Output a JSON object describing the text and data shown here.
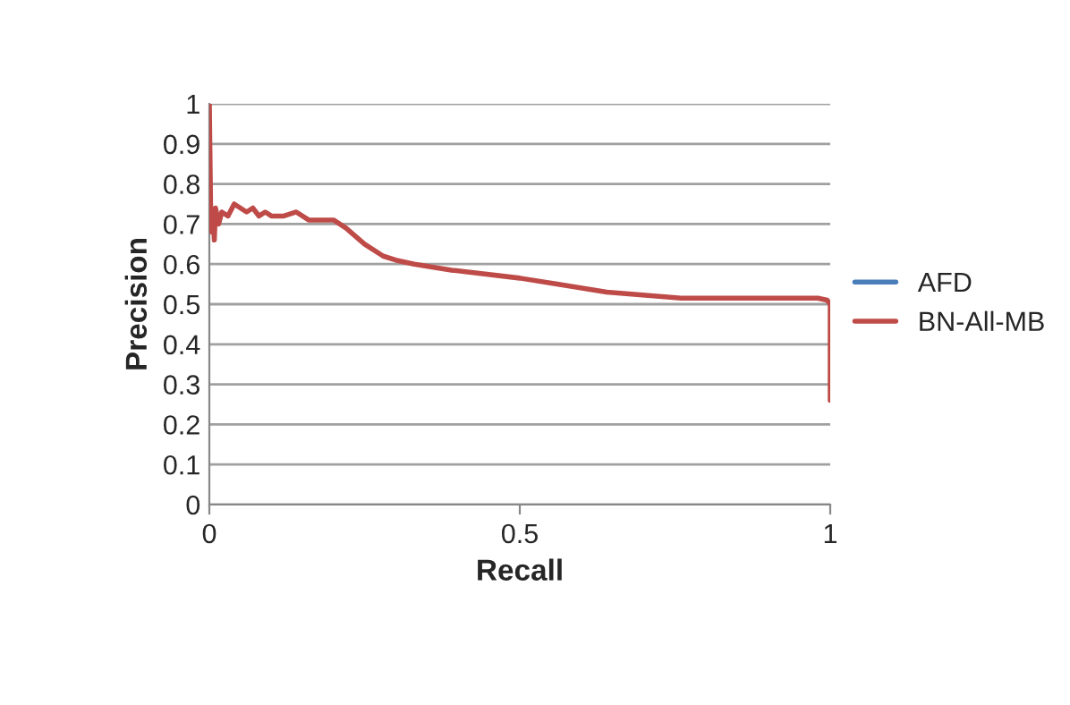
{
  "chart_data": {
    "type": "line",
    "xlabel": "Recall",
    "ylabel": "Precision",
    "xlim": [
      0,
      1
    ],
    "ylim": [
      0,
      1
    ],
    "xticks": [
      0,
      0.5,
      1
    ],
    "yticks": [
      0,
      0.1,
      0.2,
      0.3,
      0.4,
      0.5,
      0.6,
      0.7,
      0.8,
      0.9,
      1
    ],
    "grid": "y",
    "legend": "right",
    "marker": "none",
    "line_style": "solid",
    "series": [
      {
        "name": "AFD",
        "color": "#4a7ebb"
      },
      {
        "name": "BN-All-MB",
        "color": "#be4b48",
        "x": [
          0,
          0.002,
          0.004,
          0.006,
          0.008,
          0.01,
          0.015,
          0.02,
          0.03,
          0.04,
          0.05,
          0.06,
          0.07,
          0.08,
          0.09,
          0.1,
          0.12,
          0.14,
          0.16,
          0.18,
          0.2,
          0.22,
          0.25,
          0.28,
          0.3,
          0.33,
          0.39,
          0.5,
          0.56,
          0.64,
          0.76,
          0.98,
          0.995,
          1,
          1
        ],
        "values": [
          1,
          0.75,
          0.68,
          0.72,
          0.66,
          0.74,
          0.7,
          0.73,
          0.72,
          0.75,
          0.74,
          0.73,
          0.74,
          0.72,
          0.73,
          0.72,
          0.72,
          0.73,
          0.71,
          0.71,
          0.71,
          0.69,
          0.65,
          0.62,
          0.61,
          0.6,
          0.585,
          0.565,
          0.55,
          0.53,
          0.515,
          0.515,
          0.51,
          0.5,
          0.26
        ]
      }
    ]
  }
}
